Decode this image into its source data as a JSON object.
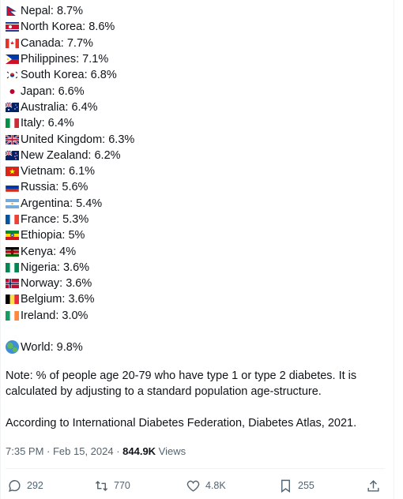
{
  "items": [
    {
      "flag": "nepal",
      "text": "Nepal: 8.7%"
    },
    {
      "flag": "north-korea",
      "text": "North Korea: 8.6%"
    },
    {
      "flag": "canada",
      "text": "Canada: 7.7%"
    },
    {
      "flag": "philippines",
      "text": "Philippines: 7.1%"
    },
    {
      "flag": "south-korea",
      "text": "South Korea: 6.8%"
    },
    {
      "flag": "japan",
      "text": "Japan: 6.6%"
    },
    {
      "flag": "australia",
      "text": "Australia: 6.4%"
    },
    {
      "flag": "italy",
      "text": "Italy: 6.4%"
    },
    {
      "flag": "united-kingdom",
      "text": "United Kingdom: 6.3%"
    },
    {
      "flag": "new-zealand",
      "text": "New Zealand: 6.2%"
    },
    {
      "flag": "vietnam",
      "text": "Vietnam: 6.1%"
    },
    {
      "flag": "russia",
      "text": "Russia: 5.6%"
    },
    {
      "flag": "argentina",
      "text": "Argentina: 5.4%"
    },
    {
      "flag": "france",
      "text": "France: 5.3%"
    },
    {
      "flag": "ethiopia",
      "text": "Ethiopia: 5%"
    },
    {
      "flag": "kenya",
      "text": "Kenya: 4%"
    },
    {
      "flag": "nigeria",
      "text": "Nigeria: 3.6%"
    },
    {
      "flag": "norway",
      "text": "Norway: 3.6%"
    },
    {
      "flag": "belgium",
      "text": "Belgium: 3.6%"
    },
    {
      "flag": "ireland",
      "text": "Ireland: 3.0%"
    }
  ],
  "world": {
    "icon": "globe-icon",
    "text": "World: 9.8%"
  },
  "note": "Note: % of people age 20-79 who have type 1 or type 2 diabetes. It is calculated by adjusting to a standard population age-structure.",
  "source": "According to International Diabetes Federation, Diabetes Atlas, 2021.",
  "meta": {
    "timestamp": "7:35 PM · Feb 15, 2024 · ",
    "views_count": "844.9K",
    "views_label": " Views"
  },
  "actions": {
    "replies": "292",
    "reposts": "770",
    "likes": "4.8K",
    "bookmarks": "255"
  },
  "colors": {
    "text": "#0f1419",
    "secondary": "#536471",
    "divider": "#eff3f4"
  }
}
